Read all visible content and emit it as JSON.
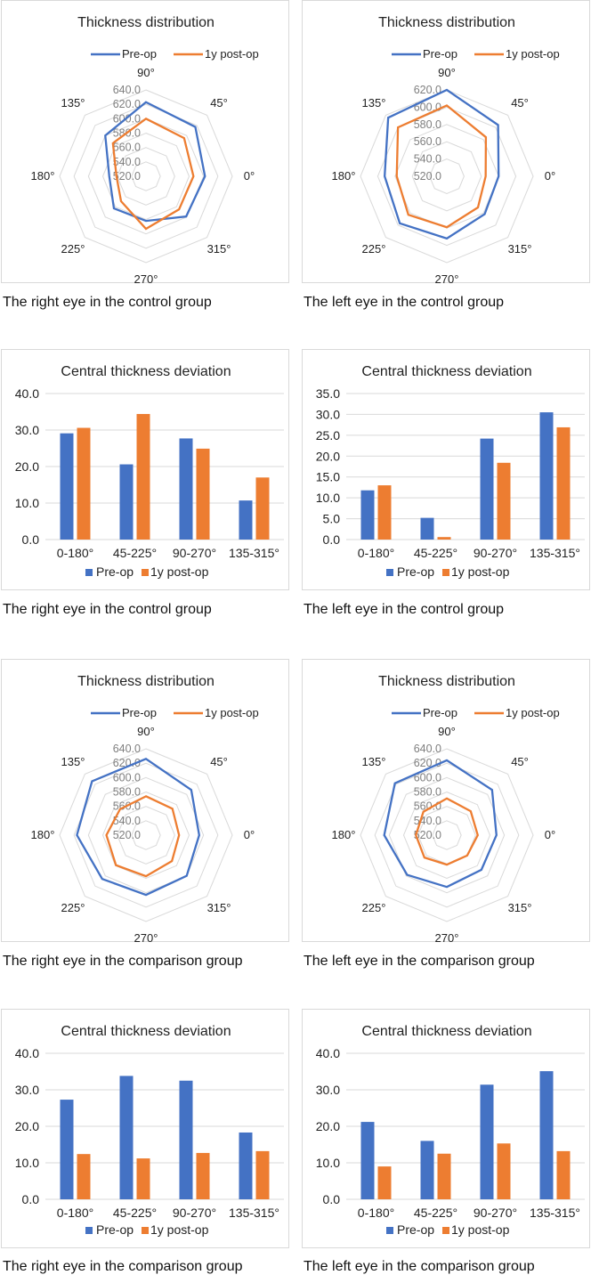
{
  "colors": {
    "pre": "#4472c4",
    "post": "#ed7d31",
    "grid": "#d9d9d9",
    "text": "#333333",
    "ring_label": "#7f7f7f"
  },
  "chart_data": [
    {
      "type": "radar",
      "title": "Thickness distribution",
      "caption": "The right eye in the control group",
      "categories": [
        "90°",
        "45°",
        "0°",
        "315°",
        "270°",
        "225°",
        "180°",
        "135°"
      ],
      "ticks": [
        "520.0",
        "540.0",
        "560.0",
        "580.0",
        "600.0",
        "620.0",
        "640.0"
      ],
      "rlim": [
        520,
        640
      ],
      "grid": true,
      "legend": "top",
      "series": [
        {
          "name": "Pre-op",
          "values": [
            623,
            617,
            602,
            599,
            582,
            583,
            571,
            600
          ]
        },
        {
          "name": "1y post-op",
          "values": [
            600,
            595,
            586,
            585,
            593,
            569,
            561,
            585
          ]
        }
      ]
    },
    {
      "type": "radar",
      "title": "Thickness distribution",
      "caption": "The left eye in the control group",
      "categories": [
        "90°",
        "45°",
        "0°",
        "315°",
        "270°",
        "225°",
        "180°",
        "135°"
      ],
      "ticks": [
        "520.0",
        "540.0",
        "560.0",
        "580.0",
        "600.0",
        "620.0"
      ],
      "rlim": [
        520,
        620
      ],
      "grid": true,
      "legend": "top",
      "series": [
        {
          "name": "Pre-op",
          "values": [
            620,
            604,
            580,
            582,
            592,
            597,
            592,
            616
          ]
        },
        {
          "name": "1y post-op",
          "values": [
            602,
            584,
            565,
            571,
            579,
            583,
            578,
            600
          ]
        }
      ]
    },
    {
      "type": "bar",
      "title": "Central thickness deviation",
      "caption": "The right eye in the control group",
      "categories": [
        "0-180°",
        "45-225°",
        "90-270°",
        "135-315°"
      ],
      "ticks": [
        "0.0",
        "10.0",
        "20.0",
        "30.0",
        "40.0"
      ],
      "ylim": [
        0,
        40
      ],
      "grid": true,
      "legend": "bottom",
      "series": [
        {
          "name": "Pre-op",
          "values": [
            29.1,
            20.6,
            27.7,
            10.7
          ]
        },
        {
          "name": "1y post-op",
          "values": [
            30.6,
            34.4,
            24.9,
            17.0
          ]
        }
      ]
    },
    {
      "type": "bar",
      "title": "Central thickness deviation",
      "caption": "The left eye in the control group",
      "categories": [
        "0-180°",
        "45-225°",
        "90-270°",
        "135-315°"
      ],
      "ticks": [
        "0.0",
        "5.0",
        "10.0",
        "15.0",
        "20.0",
        "25.0",
        "30.0",
        "35.0"
      ],
      "ylim": [
        0,
        35
      ],
      "grid": true,
      "legend": "bottom",
      "series": [
        {
          "name": "Pre-op",
          "values": [
            11.8,
            5.2,
            24.2,
            30.5
          ]
        },
        {
          "name": "1y post-op",
          "values": [
            13.0,
            0.6,
            18.4,
            26.9
          ]
        }
      ]
    },
    {
      "type": "radar",
      "title": "Thickness distribution",
      "caption": "The right eye in the comparison group",
      "categories": [
        "90°",
        "45°",
        "0°",
        "315°",
        "270°",
        "225°",
        "180°",
        "135°"
      ],
      "ticks": [
        "520.0",
        "540.0",
        "560.0",
        "580.0",
        "600.0",
        "620.0",
        "640.0"
      ],
      "rlim": [
        520,
        640
      ],
      "grid": true,
      "legend": "top",
      "series": [
        {
          "name": "Pre-op",
          "values": [
            626,
            609,
            594,
            600,
            603,
            606,
            616,
            626
          ]
        },
        {
          "name": "1y post-op",
          "values": [
            574,
            572,
            566,
            571,
            577,
            579,
            575,
            571
          ]
        }
      ]
    },
    {
      "type": "radar",
      "title": "Thickness distribution",
      "caption": "The left eye in the comparison group",
      "categories": [
        "90°",
        "45°",
        "0°",
        "315°",
        "270°",
        "225°",
        "180°",
        "135°"
      ],
      "ticks": [
        "520.0",
        "540.0",
        "560.0",
        "580.0",
        "600.0",
        "620.0",
        "640.0"
      ],
      "rlim": [
        520,
        640
      ],
      "grid": true,
      "legend": "top",
      "series": [
        {
          "name": "Pre-op",
          "values": [
            624,
            609,
            589,
            588,
            592,
            598,
            607,
            622
          ]
        },
        {
          "name": "1y post-op",
          "values": [
            571,
            567,
            563,
            560,
            561,
            564,
            563,
            566
          ]
        }
      ]
    },
    {
      "type": "bar",
      "title": "Central thickness deviation",
      "caption": "The right eye in the comparison group",
      "categories": [
        "0-180°",
        "45-225°",
        "90-270°",
        "135-315°"
      ],
      "ticks": [
        "0.0",
        "10.0",
        "20.0",
        "30.0",
        "40.0"
      ],
      "ylim": [
        0,
        40
      ],
      "grid": true,
      "legend": "bottom",
      "series": [
        {
          "name": "Pre-op",
          "values": [
            27.3,
            33.8,
            32.5,
            18.3
          ]
        },
        {
          "name": "1y post-op",
          "values": [
            12.4,
            11.2,
            12.7,
            13.2
          ]
        }
      ]
    },
    {
      "type": "bar",
      "title": "Central thickness deviation",
      "caption": "The left eye in the comparison group",
      "categories": [
        "0-180°",
        "45-225°",
        "90-270°",
        "135-315°"
      ],
      "ticks": [
        "0.0",
        "10.0",
        "20.0",
        "30.0",
        "40.0"
      ],
      "ylim": [
        0,
        40
      ],
      "grid": true,
      "legend": "bottom",
      "series": [
        {
          "name": "Pre-op",
          "values": [
            21.2,
            16.0,
            31.4,
            35.1
          ]
        },
        {
          "name": "1y post-op",
          "values": [
            9.0,
            12.5,
            15.3,
            13.2
          ]
        }
      ]
    }
  ]
}
